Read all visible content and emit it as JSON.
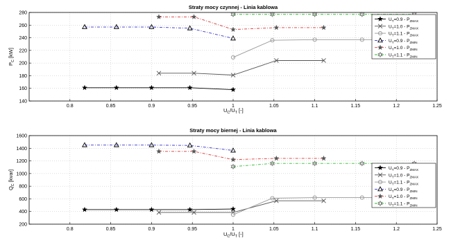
{
  "chart_data": [
    {
      "type": "line",
      "title": "Straty mocy czynnej - Linia kablowa",
      "xlabel": "U",
      "xlabel_sub": "C",
      "xlabel_mid": "/U",
      "xlabel_sub2": "T",
      "xlabel_unit": " [-]",
      "ylabel": "P",
      "ylabel_sub": "C",
      "ylabel_unit": " [kW]",
      "xlim": [
        0.75,
        1.25
      ],
      "ylim": [
        140,
        280
      ],
      "xticks": [
        0.8,
        0.85,
        0.9,
        0.95,
        1,
        1.05,
        1.1,
        1.15,
        1.2,
        1.25
      ],
      "xtick_labels": [
        "0.8",
        "0.85",
        "0.9",
        "0.95",
        "1",
        "1.05",
        "1.1",
        "1.15",
        "1.2",
        "1.25"
      ],
      "yticks": [
        140,
        160,
        180,
        200,
        220,
        240,
        260,
        280
      ],
      "ytick_labels": [
        "140",
        "160",
        "180",
        "200",
        "220",
        "240",
        "260",
        "280"
      ],
      "grid": true,
      "legend_position": "top-right",
      "series": [
        {
          "name": "U=0.9 - P",
          "color": "#000000",
          "dash": "",
          "marker": "star",
          "x": [
            0.818,
            0.857,
            0.9,
            0.947,
            1.0
          ],
          "y": [
            161,
            161,
            161,
            161,
            158
          ]
        },
        {
          "name": "U=1.0 - P",
          "color": "#555555",
          "dash": "",
          "marker": "x",
          "x": [
            0.909,
            0.952,
            1.0,
            1.053,
            1.111
          ],
          "y": [
            184,
            184,
            181,
            204,
            204
          ]
        },
        {
          "name": "U=1.1 - P",
          "color": "#999999",
          "dash": "",
          "marker": "circle",
          "x": [
            1.0,
            1.048,
            1.1,
            1.158,
            1.222
          ],
          "y": [
            209,
            236,
            237,
            237,
            237
          ]
        },
        {
          "name": "U=0.9 - P",
          "color": "#3333cc",
          "dash": "4,2,1,2",
          "marker": "triangle",
          "x": [
            0.818,
            0.857,
            0.9,
            0.947,
            1.0
          ],
          "y": [
            257,
            257,
            257,
            255,
            239
          ]
        },
        {
          "name": "U=1.0 - P",
          "color": "#dd3333",
          "dash": "4,2,1,2",
          "marker": "star",
          "x": [
            0.909,
            0.952,
            1.0,
            1.053,
            1.111
          ],
          "y": [
            273,
            273,
            253,
            256,
            256
          ]
        },
        {
          "name": "U=1.1 - P",
          "color": "#33bb33",
          "dash": "4,2,1,2",
          "marker": "hexagram",
          "x": [
            1.0,
            1.048,
            1.1,
            1.158,
            1.222
          ],
          "y": [
            277,
            277,
            277,
            277,
            277
          ]
        }
      ],
      "legend": [
        {
          "main": "U",
          "sub": "T",
          "rest": "=0.9 - P",
          "sub2": "ZMAX"
        },
        {
          "main": "U",
          "sub": "T",
          "rest": "=1.0 - P",
          "sub2": "ZMAX"
        },
        {
          "main": "U",
          "sub": "T",
          "rest": "=1.1 - P",
          "sub2": "ZMAX"
        },
        {
          "main": "U",
          "sub": "T",
          "rest": "=0.9 - P",
          "sub2": "ZMIN"
        },
        {
          "main": "U",
          "sub": "T",
          "rest": "=1.0 - P",
          "sub2": "ZMIN"
        },
        {
          "main": "U",
          "sub": "T",
          "rest": "=1.1 - P",
          "sub2": "ZMIN"
        }
      ]
    },
    {
      "type": "line",
      "title": "Straty mocy biernej - Linia kablowa",
      "xlabel": "U",
      "xlabel_sub": "C",
      "xlabel_mid": "/U",
      "xlabel_sub2": "T",
      "xlabel_unit": " [-]",
      "ylabel": "Q",
      "ylabel_sub": "C",
      "ylabel_unit": " [kvar]",
      "xlim": [
        0.75,
        1.25
      ],
      "ylim": [
        200,
        1600
      ],
      "xticks": [
        0.8,
        0.85,
        0.9,
        0.95,
        1,
        1.05,
        1.1,
        1.15,
        1.2,
        1.25
      ],
      "xtick_labels": [
        "0.8",
        "0.85",
        "0.9",
        "0.95",
        "1",
        "1.05",
        "1.1",
        "1.15",
        "1.2",
        "1.25"
      ],
      "yticks": [
        200,
        400,
        600,
        800,
        1000,
        1200,
        1400,
        1600
      ],
      "ytick_labels": [
        "200",
        "400",
        "600",
        "800",
        "1000",
        "1200",
        "1400",
        "1600"
      ],
      "grid": true,
      "legend_position": "right",
      "series": [
        {
          "name": "U=0.9 - P",
          "color": "#000000",
          "dash": "",
          "marker": "star",
          "x": [
            0.818,
            0.857,
            0.9,
            0.947,
            1.0
          ],
          "y": [
            430,
            430,
            430,
            430,
            440
          ]
        },
        {
          "name": "U=1.0 - P",
          "color": "#555555",
          "dash": "",
          "marker": "x",
          "x": [
            0.909,
            0.952,
            1.0,
            1.053,
            1.111
          ],
          "y": [
            385,
            385,
            385,
            570,
            570
          ]
        },
        {
          "name": "U=1.1 - P",
          "color": "#999999",
          "dash": "",
          "marker": "circle",
          "x": [
            1.0,
            1.048,
            1.1,
            1.158,
            1.222
          ],
          "y": [
            350,
            610,
            620,
            620,
            620
          ]
        },
        {
          "name": "U=0.9 - P",
          "color": "#3333cc",
          "dash": "4,2,1,2",
          "marker": "triangle",
          "x": [
            0.818,
            0.857,
            0.9,
            0.947,
            1.0
          ],
          "y": [
            1450,
            1450,
            1450,
            1445,
            1365
          ]
        },
        {
          "name": "U=1.0 - P",
          "color": "#dd3333",
          "dash": "4,2,1,2",
          "marker": "star",
          "x": [
            0.909,
            0.952,
            1.0,
            1.053,
            1.111
          ],
          "y": [
            1350,
            1350,
            1220,
            1240,
            1240
          ]
        },
        {
          "name": "U=1.1 - P",
          "color": "#33bb33",
          "dash": "4,2,1,2",
          "marker": "hexagram",
          "x": [
            1.0,
            1.048,
            1.1,
            1.158,
            1.222
          ],
          "y": [
            1110,
            1160,
            1160,
            1160,
            1160
          ]
        }
      ],
      "legend": [
        {
          "main": "U",
          "sub": "T",
          "rest": "=0.9 - P",
          "sub2": "ZMAX"
        },
        {
          "main": "U",
          "sub": "T",
          "rest": "=1.0 - P",
          "sub2": "ZMAX"
        },
        {
          "main": "U",
          "sub": "T",
          "rest": "=1.1 - P",
          "sub2": "ZMAX"
        },
        {
          "main": "U",
          "sub": "T",
          "rest": "=0.9 - P",
          "sub2": "ZMIN"
        },
        {
          "main": "U",
          "sub": "T",
          "rest": "=1.0 - P",
          "sub2": "ZMIN"
        },
        {
          "main": "U",
          "sub": "T",
          "rest": "=1.1 - P",
          "sub2": "ZMIN"
        }
      ]
    }
  ]
}
